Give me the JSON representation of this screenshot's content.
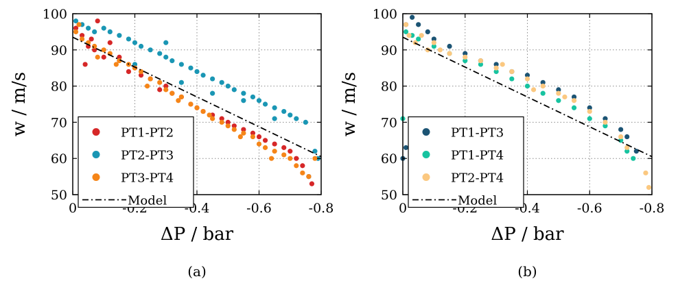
{
  "chart_data": [
    {
      "type": "scatter",
      "panel_label": "(a)",
      "xlabel": "ΔP / bar",
      "ylabel": "w / m/s",
      "xlim": [
        0,
        -0.8
      ],
      "ylim": [
        50,
        100
      ],
      "xticks": [
        "0",
        "-0.2",
        "-0.4",
        "-0.6",
        "-0.8"
      ],
      "yticks": [
        "50",
        "60",
        "70",
        "80",
        "90",
        "100"
      ],
      "grid": true,
      "legend_position": "bottom-left",
      "series": [
        {
          "name": "PT1-PT2",
          "color": "#d62728",
          "points": [
            [
              -0.01,
              96
            ],
            [
              -0.03,
              94
            ],
            [
              -0.05,
              91
            ],
            [
              -0.07,
              90
            ],
            [
              -0.08,
              98
            ],
            [
              -0.1,
              88
            ],
            [
              -0.12,
              92
            ],
            [
              -0.15,
              88
            ],
            [
              -0.18,
              84
            ],
            [
              -0.2,
              85
            ],
            [
              -0.22,
              83
            ],
            [
              -0.25,
              82
            ],
            [
              -0.28,
              79
            ],
            [
              -0.3,
              80
            ],
            [
              -0.32,
              78
            ],
            [
              -0.35,
              77
            ],
            [
              -0.38,
              75
            ],
            [
              -0.4,
              74
            ],
            [
              -0.42,
              73
            ],
            [
              -0.45,
              72
            ],
            [
              -0.48,
              71
            ],
            [
              -0.5,
              70
            ],
            [
              -0.52,
              69
            ],
            [
              -0.55,
              68
            ],
            [
              -0.58,
              67
            ],
            [
              -0.6,
              66
            ],
            [
              -0.62,
              65
            ],
            [
              -0.65,
              64
            ],
            [
              -0.68,
              63
            ],
            [
              -0.7,
              62
            ],
            [
              -0.72,
              60
            ],
            [
              -0.74,
              58
            ],
            [
              -0.76,
              55
            ],
            [
              -0.77,
              53
            ],
            [
              -0.04,
              86
            ],
            [
              -0.06,
              93
            ]
          ]
        },
        {
          "name": "PT2-PT3",
          "color": "#1a96b4",
          "points": [
            [
              -0.01,
              98
            ],
            [
              -0.03,
              97
            ],
            [
              -0.05,
              96
            ],
            [
              -0.07,
              95
            ],
            [
              -0.1,
              96
            ],
            [
              -0.12,
              95
            ],
            [
              -0.15,
              94
            ],
            [
              -0.18,
              93
            ],
            [
              -0.2,
              92
            ],
            [
              -0.22,
              91
            ],
            [
              -0.25,
              90
            ],
            [
              -0.28,
              89
            ],
            [
              -0.3,
              88
            ],
            [
              -0.32,
              87
            ],
            [
              -0.35,
              86
            ],
            [
              -0.38,
              85
            ],
            [
              -0.4,
              84
            ],
            [
              -0.42,
              83
            ],
            [
              -0.45,
              82
            ],
            [
              -0.48,
              81
            ],
            [
              -0.5,
              80
            ],
            [
              -0.52,
              79
            ],
            [
              -0.55,
              78
            ],
            [
              -0.58,
              77
            ],
            [
              -0.6,
              76
            ],
            [
              -0.62,
              75
            ],
            [
              -0.65,
              74
            ],
            [
              -0.68,
              73
            ],
            [
              -0.7,
              72
            ],
            [
              -0.72,
              71
            ],
            [
              -0.75,
              70
            ],
            [
              -0.78,
              62
            ],
            [
              -0.79,
              60
            ],
            [
              -0.76,
              55
            ],
            [
              -0.2,
              86
            ],
            [
              -0.35,
              81
            ],
            [
              -0.45,
              78
            ],
            [
              -0.55,
              76
            ],
            [
              -0.65,
              71
            ],
            [
              -0.3,
              92
            ]
          ]
        },
        {
          "name": "PT3-PT4",
          "color": "#f58518",
          "points": [
            [
              -0.01,
              95
            ],
            [
              -0.03,
              93
            ],
            [
              -0.05,
              92
            ],
            [
              -0.07,
              91
            ],
            [
              -0.1,
              90
            ],
            [
              -0.12,
              89
            ],
            [
              -0.15,
              87
            ],
            [
              -0.18,
              86
            ],
            [
              -0.2,
              85
            ],
            [
              -0.22,
              84
            ],
            [
              -0.25,
              82
            ],
            [
              -0.28,
              81
            ],
            [
              -0.3,
              79
            ],
            [
              -0.32,
              78
            ],
            [
              -0.35,
              77
            ],
            [
              -0.38,
              75
            ],
            [
              -0.4,
              74
            ],
            [
              -0.42,
              73
            ],
            [
              -0.45,
              71
            ],
            [
              -0.48,
              70
            ],
            [
              -0.5,
              69
            ],
            [
              -0.52,
              68
            ],
            [
              -0.55,
              67
            ],
            [
              -0.58,
              66
            ],
            [
              -0.6,
              64
            ],
            [
              -0.62,
              63
            ],
            [
              -0.65,
              62
            ],
            [
              -0.68,
              61
            ],
            [
              -0.7,
              60
            ],
            [
              -0.72,
              58
            ],
            [
              -0.74,
              56
            ],
            [
              -0.76,
              55
            ],
            [
              -0.78,
              60
            ],
            [
              -0.02,
              97
            ],
            [
              -0.08,
              88
            ],
            [
              -0.14,
              86
            ],
            [
              -0.24,
              80
            ],
            [
              -0.34,
              76
            ],
            [
              -0.44,
              72
            ],
            [
              -0.54,
              66
            ],
            [
              -0.64,
              60
            ]
          ]
        }
      ],
      "model_line": {
        "name": "Model",
        "x": [
          0,
          -0.8
        ],
        "y": [
          93.5,
          60.5
        ]
      }
    },
    {
      "type": "scatter",
      "panel_label": "(b)",
      "xlabel": "ΔP / bar",
      "ylabel": "w / m/s",
      "xlim": [
        0,
        -0.8
      ],
      "ylim": [
        50,
        100
      ],
      "xticks": [
        "0",
        "-0.2",
        "-0.4",
        "-0.6",
        "-0.8"
      ],
      "yticks": [
        "50",
        "60",
        "70",
        "80",
        "90",
        "100"
      ],
      "grid": true,
      "legend_position": "bottom-left",
      "series": [
        {
          "name": "PT1-PT3",
          "color": "#1c5474",
          "points": [
            [
              -0.01,
              97
            ],
            [
              -0.03,
              99
            ],
            [
              -0.05,
              97
            ],
            [
              -0.08,
              95
            ],
            [
              -0.1,
              93
            ],
            [
              -0.15,
              91
            ],
            [
              -0.2,
              89
            ],
            [
              -0.25,
              87
            ],
            [
              -0.3,
              86
            ],
            [
              -0.35,
              84
            ],
            [
              -0.4,
              83
            ],
            [
              -0.45,
              81
            ],
            [
              -0.5,
              79
            ],
            [
              -0.55,
              77
            ],
            [
              -0.6,
              74
            ],
            [
              -0.65,
              71
            ],
            [
              -0.7,
              68
            ],
            [
              -0.72,
              66
            ],
            [
              -0.75,
              62
            ],
            [
              -0.0,
              60
            ],
            [
              -0.01,
              63
            ]
          ]
        },
        {
          "name": "PT1-PT4",
          "color": "#17c3a0",
          "points": [
            [
              -0.01,
              95
            ],
            [
              -0.03,
              94
            ],
            [
              -0.05,
              93
            ],
            [
              -0.1,
              91
            ],
            [
              -0.15,
              89
            ],
            [
              -0.2,
              87
            ],
            [
              -0.25,
              86
            ],
            [
              -0.3,
              84
            ],
            [
              -0.35,
              82
            ],
            [
              -0.4,
              80
            ],
            [
              -0.45,
              78
            ],
            [
              -0.5,
              76
            ],
            [
              -0.55,
              74
            ],
            [
              -0.6,
              71
            ],
            [
              -0.65,
              69
            ],
            [
              -0.7,
              65
            ],
            [
              -0.72,
              62
            ],
            [
              -0.74,
              60
            ],
            [
              -0.0,
              71
            ]
          ]
        },
        {
          "name": "PT2-PT4",
          "color": "#fbc880",
          "points": [
            [
              -0.01,
              97
            ],
            [
              -0.02,
              94
            ],
            [
              -0.04,
              92
            ],
            [
              -0.06,
              94
            ],
            [
              -0.1,
              92
            ],
            [
              -0.12,
              90
            ],
            [
              -0.15,
              89
            ],
            [
              -0.2,
              88
            ],
            [
              -0.25,
              87
            ],
            [
              -0.3,
              85
            ],
            [
              -0.35,
              84
            ],
            [
              -0.4,
              82
            ],
            [
              -0.45,
              80
            ],
            [
              -0.5,
              78
            ],
            [
              -0.55,
              76
            ],
            [
              -0.6,
              73
            ],
            [
              -0.65,
              70
            ],
            [
              -0.7,
              66
            ],
            [
              -0.72,
              63
            ],
            [
              -0.78,
              56
            ],
            [
              -0.79,
              52
            ],
            [
              -0.08,
              90
            ],
            [
              -0.32,
              86
            ],
            [
              -0.42,
              79
            ],
            [
              -0.52,
              77
            ]
          ]
        }
      ],
      "model_line": {
        "name": "Model",
        "x": [
          0,
          -0.8
        ],
        "y": [
          93.5,
          60.5
        ]
      }
    }
  ]
}
